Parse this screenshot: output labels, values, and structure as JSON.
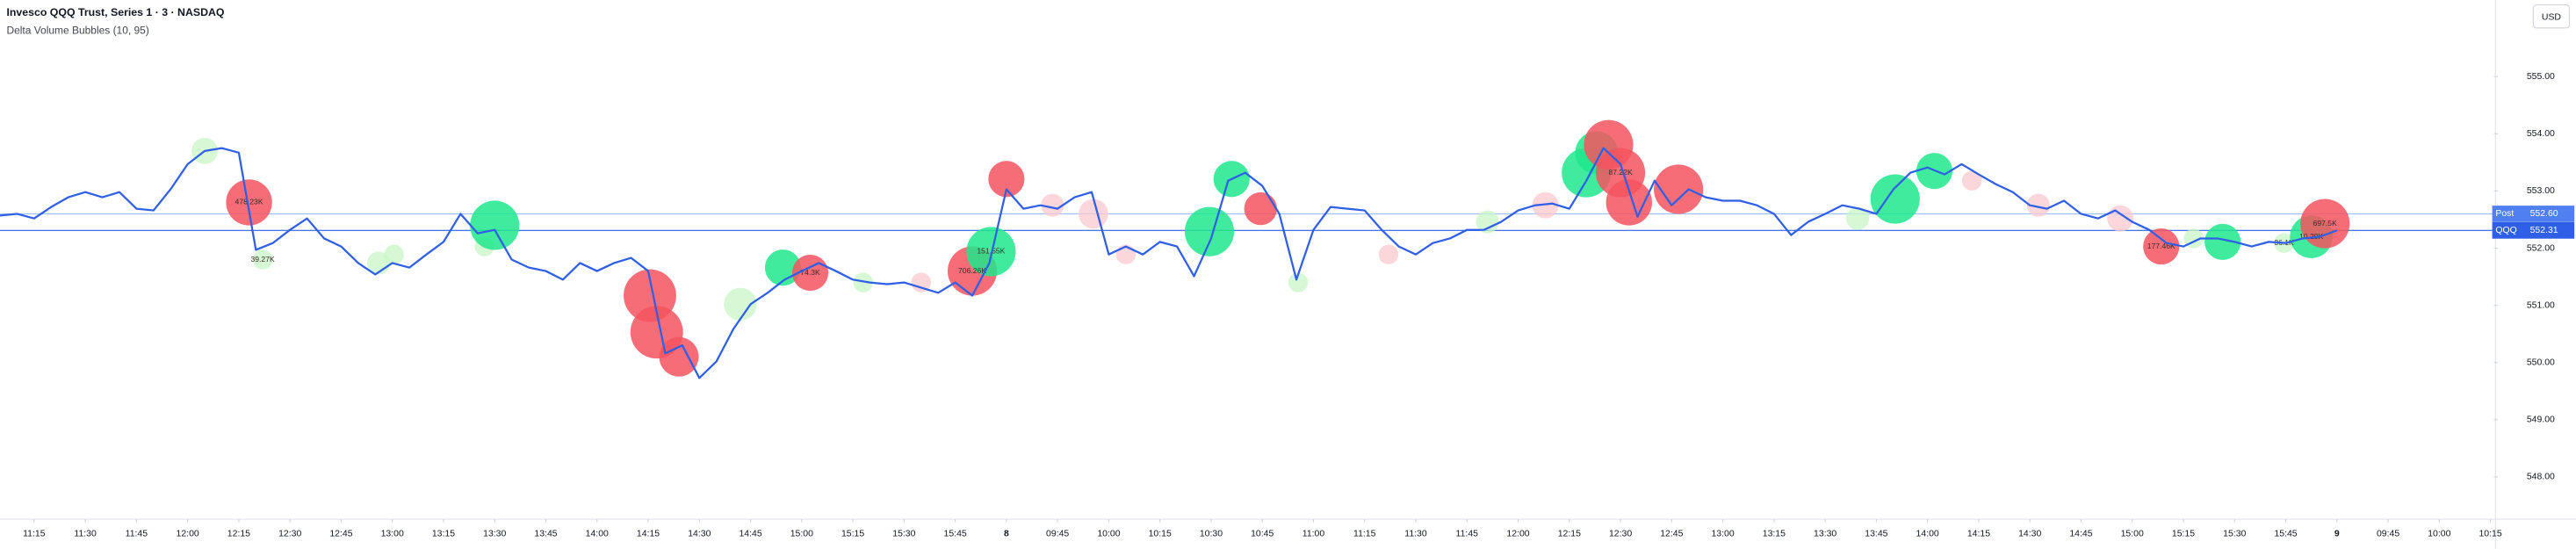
{
  "chart_data": {
    "type": "line",
    "title": "Invesco QQQ Trust, Series 1 · 3 · NASDAQ",
    "subtitle": "Delta Volume Bubbles (10, 95)",
    "currency": "USD",
    "xlim": [
      0,
      146.2
    ],
    "ylim": [
      547.26,
      556.34
    ],
    "grid": false,
    "xticks": [
      {
        "value": 2,
        "label": "11:15"
      },
      {
        "value": 5,
        "label": "11:30"
      },
      {
        "value": 8,
        "label": "11:45"
      },
      {
        "value": 11,
        "label": "12:00"
      },
      {
        "value": 14,
        "label": "12:15"
      },
      {
        "value": 17,
        "label": "12:30"
      },
      {
        "value": 20,
        "label": "12:45"
      },
      {
        "value": 23,
        "label": "13:00"
      },
      {
        "value": 26,
        "label": "13:15"
      },
      {
        "value": 29,
        "label": "13:30"
      },
      {
        "value": 32,
        "label": "13:45"
      },
      {
        "value": 35,
        "label": "14:00"
      },
      {
        "value": 38,
        "label": "14:15"
      },
      {
        "value": 41,
        "label": "14:30"
      },
      {
        "value": 44,
        "label": "14:45"
      },
      {
        "value": 47,
        "label": "15:00"
      },
      {
        "value": 50,
        "label": "15:15"
      },
      {
        "value": 53,
        "label": "15:30"
      },
      {
        "value": 56,
        "label": "15:45"
      },
      {
        "value": 59,
        "label": "8"
      },
      {
        "value": 62,
        "label": "09:45"
      },
      {
        "value": 65,
        "label": "10:00"
      },
      {
        "value": 68,
        "label": "10:15"
      },
      {
        "value": 71,
        "label": "10:30"
      },
      {
        "value": 74,
        "label": "10:45"
      },
      {
        "value": 77,
        "label": "11:00"
      },
      {
        "value": 80,
        "label": "11:15"
      },
      {
        "value": 83,
        "label": "11:30"
      },
      {
        "value": 86,
        "label": "11:45"
      },
      {
        "value": 89,
        "label": "12:00"
      },
      {
        "value": 92,
        "label": "12:15"
      },
      {
        "value": 95,
        "label": "12:30"
      },
      {
        "value": 98,
        "label": "12:45"
      },
      {
        "value": 101,
        "label": "13:00"
      },
      {
        "value": 104,
        "label": "13:15"
      },
      {
        "value": 107,
        "label": "13:30"
      },
      {
        "value": 110,
        "label": "13:45"
      },
      {
        "value": 113,
        "label": "14:00"
      },
      {
        "value": 116,
        "label": "14:15"
      },
      {
        "value": 119,
        "label": "14:30"
      },
      {
        "value": 122,
        "label": "14:45"
      },
      {
        "value": 125,
        "label": "15:00"
      },
      {
        "value": 128,
        "label": "15:15"
      },
      {
        "value": 131,
        "label": "15:30"
      },
      {
        "value": 134,
        "label": "15:45"
      },
      {
        "value": 137,
        "label": "9"
      },
      {
        "value": 140,
        "label": "09:45"
      },
      {
        "value": 143,
        "label": "10:00"
      },
      {
        "value": 146,
        "label": "10:15"
      }
    ],
    "yticks": [
      {
        "value": 548,
        "label": "548.00"
      },
      {
        "value": 549,
        "label": "549.00"
      },
      {
        "value": 550,
        "label": "550.00"
      },
      {
        "value": 551,
        "label": "551.00"
      },
      {
        "value": 552,
        "label": "552.00"
      },
      {
        "value": 553,
        "label": "553.00"
      },
      {
        "value": 554,
        "label": "554.00"
      },
      {
        "value": 555,
        "label": "555.00"
      }
    ],
    "series": [
      {
        "name": "QQQ",
        "color": "#2f5fe6",
        "values": [
          552.57,
          552.6,
          552.52,
          552.72,
          552.89,
          552.98,
          552.89,
          552.98,
          552.69,
          552.66,
          553.03,
          553.47,
          553.7,
          553.75,
          553.67,
          551.97,
          552.09,
          552.32,
          552.52,
          552.17,
          552.03,
          551.74,
          551.54,
          551.74,
          551.66,
          551.89,
          552.11,
          552.6,
          552.26,
          552.32,
          551.8,
          551.66,
          551.6,
          551.45,
          551.74,
          551.6,
          551.74,
          551.83,
          551.6,
          550.16,
          550.3,
          549.73,
          550.02,
          550.59,
          551.02,
          551.22,
          551.45,
          551.6,
          551.74,
          551.6,
          551.45,
          551.4,
          551.37,
          551.4,
          551.31,
          551.22,
          551.4,
          551.17,
          551.74,
          553.03,
          552.69,
          552.75,
          552.69,
          552.89,
          552.98,
          551.89,
          552.03,
          551.89,
          552.11,
          552.03,
          551.51,
          552.17,
          553.18,
          553.32,
          553.09,
          552.6,
          551.45,
          552.32,
          552.72,
          552.69,
          552.66,
          552.32,
          552.03,
          551.89,
          552.09,
          552.17,
          552.32,
          552.32,
          552.46,
          552.66,
          552.75,
          552.78,
          552.69,
          553.18,
          553.75,
          553.47,
          552.55,
          553.18,
          552.75,
          553.03,
          552.89,
          552.83,
          552.83,
          552.75,
          552.6,
          552.23,
          552.46,
          552.6,
          552.75,
          552.69,
          552.6,
          553.03,
          553.32,
          553.41,
          553.29,
          553.47,
          553.29,
          553.12,
          552.98,
          552.75,
          552.69,
          552.83,
          552.6,
          552.52,
          552.66,
          552.46,
          552.32,
          552.09,
          552.03,
          552.17,
          552.17,
          552.11,
          552.03,
          552.11,
          552.09,
          552.17,
          552.2,
          552.31
        ]
      }
    ],
    "price_lines": [
      {
        "name": "Post",
        "value": 552.6,
        "value_label": "552.60",
        "color": "#9fbef7"
      },
      {
        "name": "QQQ",
        "value": 552.31,
        "value_label": "552.31",
        "color": "#2f5fe6"
      }
    ],
    "bubble_colors": {
      "buy": "#1fe88c",
      "sell": "#f5545f",
      "buy_light": "#c9f6c6",
      "sell_light": "#f9c8cd"
    },
    "bubbles": [
      {
        "x": 12.0,
        "y": 553.7,
        "size": 8,
        "kind": "buy_light"
      },
      {
        "x": 22.2,
        "y": 551.74,
        "size": 7,
        "kind": "buy_light"
      },
      {
        "x": 23.1,
        "y": 551.89,
        "size": 6,
        "kind": "buy_light"
      },
      {
        "x": 28.4,
        "y": 552.03,
        "size": 6,
        "kind": "buy_light"
      },
      {
        "x": 43.4,
        "y": 551.02,
        "size": 10,
        "kind": "buy_light"
      },
      {
        "x": 50.6,
        "y": 551.4,
        "size": 6,
        "kind": "buy_light"
      },
      {
        "x": 54.0,
        "y": 551.4,
        "size": 6,
        "kind": "sell_light"
      },
      {
        "x": 61.7,
        "y": 552.75,
        "size": 7,
        "kind": "sell_light"
      },
      {
        "x": 64.1,
        "y": 552.6,
        "size": 9,
        "kind": "sell_light"
      },
      {
        "x": 66.0,
        "y": 551.89,
        "size": 6,
        "kind": "sell_light"
      },
      {
        "x": 76.1,
        "y": 551.4,
        "size": 6,
        "kind": "buy_light"
      },
      {
        "x": 81.4,
        "y": 551.89,
        "size": 6,
        "kind": "sell_light"
      },
      {
        "x": 87.2,
        "y": 552.46,
        "size": 7,
        "kind": "buy_light"
      },
      {
        "x": 90.6,
        "y": 552.75,
        "size": 8,
        "kind": "sell_light"
      },
      {
        "x": 108.9,
        "y": 552.52,
        "size": 7,
        "kind": "buy_light"
      },
      {
        "x": 115.6,
        "y": 553.18,
        "size": 6,
        "kind": "sell_light"
      },
      {
        "x": 119.5,
        "y": 552.75,
        "size": 7,
        "kind": "sell_light"
      },
      {
        "x": 124.3,
        "y": 552.52,
        "size": 8,
        "kind": "sell_light"
      },
      {
        "x": 128.6,
        "y": 552.17,
        "size": 6,
        "kind": "buy_light"
      },
      {
        "x": 133.9,
        "y": 552.09,
        "size": 6,
        "kind": "buy_light",
        "label": "36.1K"
      },
      {
        "x": 14.6,
        "y": 552.8,
        "size": 14,
        "kind": "sell",
        "label": "478.23K"
      },
      {
        "x": 15.4,
        "y": 551.8,
        "size": 6,
        "kind": "buy_light",
        "label": "39.27K"
      },
      {
        "x": 29.0,
        "y": 552.4,
        "size": 15,
        "kind": "buy"
      },
      {
        "x": 38.1,
        "y": 551.17,
        "size": 16,
        "kind": "sell"
      },
      {
        "x": 38.5,
        "y": 550.53,
        "size": 16,
        "kind": "sell"
      },
      {
        "x": 39.8,
        "y": 550.1,
        "size": 12,
        "kind": "sell"
      },
      {
        "x": 45.9,
        "y": 551.66,
        "size": 11,
        "kind": "buy"
      },
      {
        "x": 47.5,
        "y": 551.57,
        "size": 11,
        "kind": "sell",
        "label": "74.3K"
      },
      {
        "x": 59.0,
        "y": 553.21,
        "size": 11,
        "kind": "sell"
      },
      {
        "x": 57.0,
        "y": 551.6,
        "size": 15,
        "kind": "sell",
        "label": "706.26K"
      },
      {
        "x": 58.1,
        "y": 551.94,
        "size": 15,
        "kind": "buy",
        "label": "151.55K"
      },
      {
        "x": 70.9,
        "y": 552.29,
        "size": 15,
        "kind": "buy"
      },
      {
        "x": 72.2,
        "y": 553.21,
        "size": 11,
        "kind": "buy"
      },
      {
        "x": 73.9,
        "y": 552.69,
        "size": 10,
        "kind": "sell"
      },
      {
        "x": 93.0,
        "y": 553.32,
        "size": 15,
        "kind": "buy"
      },
      {
        "x": 93.6,
        "y": 553.67,
        "size": 13,
        "kind": "buy"
      },
      {
        "x": 94.3,
        "y": 553.81,
        "size": 15,
        "kind": "sell"
      },
      {
        "x": 95.0,
        "y": 553.32,
        "size": 15,
        "kind": "sell",
        "label": "87.22K"
      },
      {
        "x": 95.5,
        "y": 552.8,
        "size": 14,
        "kind": "sell"
      },
      {
        "x": 98.4,
        "y": 553.03,
        "size": 15,
        "kind": "sell"
      },
      {
        "x": 111.1,
        "y": 552.86,
        "size": 15,
        "kind": "buy"
      },
      {
        "x": 113.4,
        "y": 553.35,
        "size": 11,
        "kind": "buy"
      },
      {
        "x": 126.7,
        "y": 552.03,
        "size": 11,
        "kind": "sell",
        "label": "177.46K"
      },
      {
        "x": 130.3,
        "y": 552.11,
        "size": 11,
        "kind": "buy"
      },
      {
        "x": 135.5,
        "y": 552.2,
        "size": 13,
        "kind": "buy",
        "label": "10.29K"
      },
      {
        "x": 136.3,
        "y": 552.43,
        "size": 15,
        "kind": "sell",
        "label": "697.5K"
      }
    ]
  }
}
